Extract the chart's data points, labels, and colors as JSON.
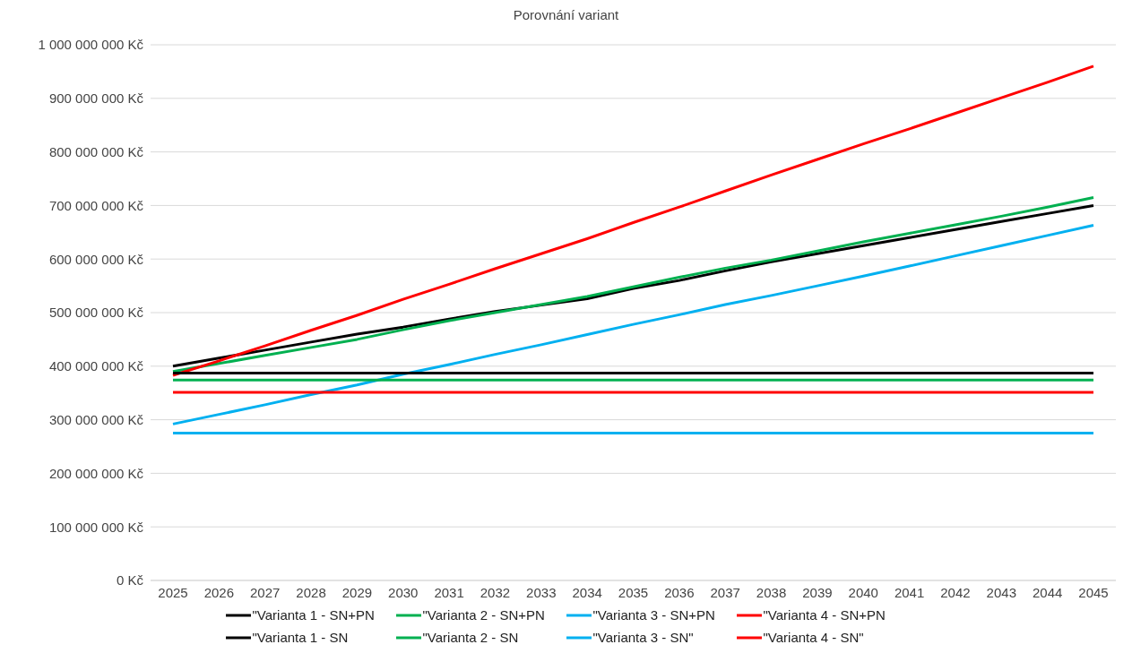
{
  "chart_data": {
    "type": "line",
    "title": "Porovnání variant",
    "categories": [
      "2025",
      "2026",
      "2027",
      "2028",
      "2029",
      "2030",
      "2031",
      "2032",
      "2033",
      "2034",
      "2035",
      "2036",
      "2037",
      "2038",
      "2039",
      "2040",
      "2041",
      "2042",
      "2043",
      "2044",
      "2045"
    ],
    "series": [
      {
        "name": "\"Varianta 1 - SN+PN",
        "color": "#000000",
        "values": [
          400000000,
          415000000,
          430000000,
          445000000,
          460000000,
          473000000,
          488000000,
          502000000,
          514000000,
          526000000,
          545000000,
          560000000,
          578000000,
          595000000,
          610000000,
          625000000,
          640000000,
          655000000,
          670000000,
          685000000,
          700000000
        ]
      },
      {
        "name": "\"Varianta 2 - SN+PN",
        "color": "#00b050",
        "values": [
          390000000,
          405000000,
          420000000,
          435000000,
          450000000,
          468000000,
          485000000,
          500000000,
          515000000,
          530000000,
          548000000,
          566000000,
          583000000,
          598000000,
          615000000,
          632000000,
          648000000,
          664000000,
          680000000,
          697000000,
          715000000
        ]
      },
      {
        "name": "\"Varianta 3 - SN+PN",
        "color": "#00b0f0",
        "values": [
          292000000,
          310000000,
          328000000,
          347000000,
          365000000,
          385000000,
          403000000,
          422000000,
          440000000,
          459000000,
          478000000,
          496000000,
          515000000,
          532000000,
          550000000,
          568000000,
          587000000,
          606000000,
          625000000,
          644000000,
          663000000
        ]
      },
      {
        "name": "\"Varianta 4 - SN+PN",
        "color": "#ff0000",
        "values": [
          383000000,
          410000000,
          438000000,
          467000000,
          495000000,
          525000000,
          553000000,
          582000000,
          610000000,
          638000000,
          668000000,
          697000000,
          727000000,
          757000000,
          786000000,
          815000000,
          843000000,
          872000000,
          901000000,
          930000000,
          960000000
        ]
      },
      {
        "name": "\"Varianta 1 - SN",
        "color": "#000000",
        "values": [
          387000000,
          387000000,
          387000000,
          387000000,
          387000000,
          387000000,
          387000000,
          387000000,
          387000000,
          387000000,
          387000000,
          387000000,
          387000000,
          387000000,
          387000000,
          387000000,
          387000000,
          387000000,
          387000000,
          387000000,
          387000000
        ]
      },
      {
        "name": "\"Varianta 2 - SN",
        "color": "#00b050",
        "values": [
          374000000,
          374000000,
          374000000,
          374000000,
          374000000,
          374000000,
          374000000,
          374000000,
          374000000,
          374000000,
          374000000,
          374000000,
          374000000,
          374000000,
          374000000,
          374000000,
          374000000,
          374000000,
          374000000,
          374000000,
          374000000
        ]
      },
      {
        "name": "\"Varianta 3 - SN\"",
        "color": "#00b0f0",
        "values": [
          275000000,
          275000000,
          275000000,
          275000000,
          275000000,
          275000000,
          275000000,
          275000000,
          275000000,
          275000000,
          275000000,
          275000000,
          275000000,
          275000000,
          275000000,
          275000000,
          275000000,
          275000000,
          275000000,
          275000000,
          275000000
        ]
      },
      {
        "name": "\"Varianta 4 - SN\"",
        "color": "#ff0000",
        "values": [
          351000000,
          351000000,
          351000000,
          351000000,
          351000000,
          351000000,
          351000000,
          351000000,
          351000000,
          351000000,
          351000000,
          351000000,
          351000000,
          351000000,
          351000000,
          351000000,
          351000000,
          351000000,
          351000000,
          351000000,
          351000000
        ]
      }
    ],
    "ylim": [
      0,
      1000000000
    ],
    "yticks": [
      {
        "value": 0,
        "label": "0 Kč"
      },
      {
        "value": 100000000,
        "label": "100 000 000 Kč"
      },
      {
        "value": 200000000,
        "label": "200 000 000 Kč"
      },
      {
        "value": 300000000,
        "label": "300 000 000 Kč"
      },
      {
        "value": 400000000,
        "label": "400 000 000 Kč"
      },
      {
        "value": 500000000,
        "label": "500 000 000 Kč"
      },
      {
        "value": 600000000,
        "label": "600 000 000 Kč"
      },
      {
        "value": 700000000,
        "label": "700 000 000 Kč"
      },
      {
        "value": 800000000,
        "label": "800 000 000 Kč"
      },
      {
        "value": 900000000,
        "label": "900 000 000 Kč"
      },
      {
        "value": 1000000000,
        "label": "1 000 000 000 Kč"
      }
    ],
    "grid": "y",
    "legend": "bottom",
    "marker": "none",
    "line_style": "solid"
  }
}
